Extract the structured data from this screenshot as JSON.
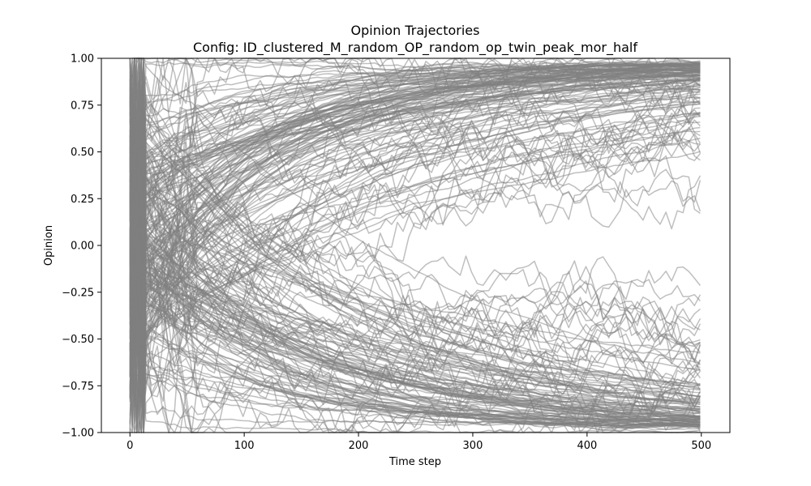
{
  "chart_data": {
    "type": "line",
    "title": "Opinion Trajectories",
    "subtitle": "Config: ID_clustered_M_random_OP_random_op_twin_peak_mor_half",
    "xlabel": "Time step",
    "ylabel": "Opinion",
    "xlim": [
      -25,
      525
    ],
    "ylim": [
      -1.0,
      1.0
    ],
    "x_ticks": [
      0,
      100,
      200,
      300,
      400,
      500
    ],
    "x_tick_labels": [
      "0",
      "100",
      "200",
      "300",
      "400",
      "500"
    ],
    "y_ticks": [
      -1.0,
      -0.75,
      -0.5,
      -0.25,
      0.0,
      0.25,
      0.5,
      0.75,
      1.0
    ],
    "y_tick_labels": [
      "−1.00",
      "−0.75",
      "−0.50",
      "−0.25",
      "0.00",
      "0.25",
      "0.50",
      "0.75",
      "1.00"
    ],
    "grid": false,
    "legend": "none",
    "line_color": "#808080",
    "line_alpha": 0.5,
    "x_range": [
      0,
      500
    ],
    "series_summary": [
      {
        "x": [
          0,
          50,
          100,
          200,
          300,
          400,
          500
        ],
        "y": [
          0.1,
          0.15,
          0.35,
          0.75,
          0.92,
          0.97,
          0.98
        ]
      },
      {
        "x": [
          0,
          50,
          100,
          200,
          300,
          400,
          500
        ],
        "y": [
          0.05,
          -0.1,
          -0.35,
          -0.75,
          -0.92,
          -0.96,
          -0.97
        ]
      },
      {
        "x": [
          0,
          50,
          100,
          200,
          300,
          400,
          500
        ],
        "y": [
          0.2,
          0.25,
          0.3,
          0.45,
          0.55,
          0.5,
          0.45
        ]
      },
      {
        "x": [
          0,
          50,
          100,
          200,
          300,
          400,
          500
        ],
        "y": [
          -0.1,
          -0.2,
          -0.3,
          -0.4,
          -0.5,
          -0.45,
          -0.5
        ]
      }
    ]
  }
}
